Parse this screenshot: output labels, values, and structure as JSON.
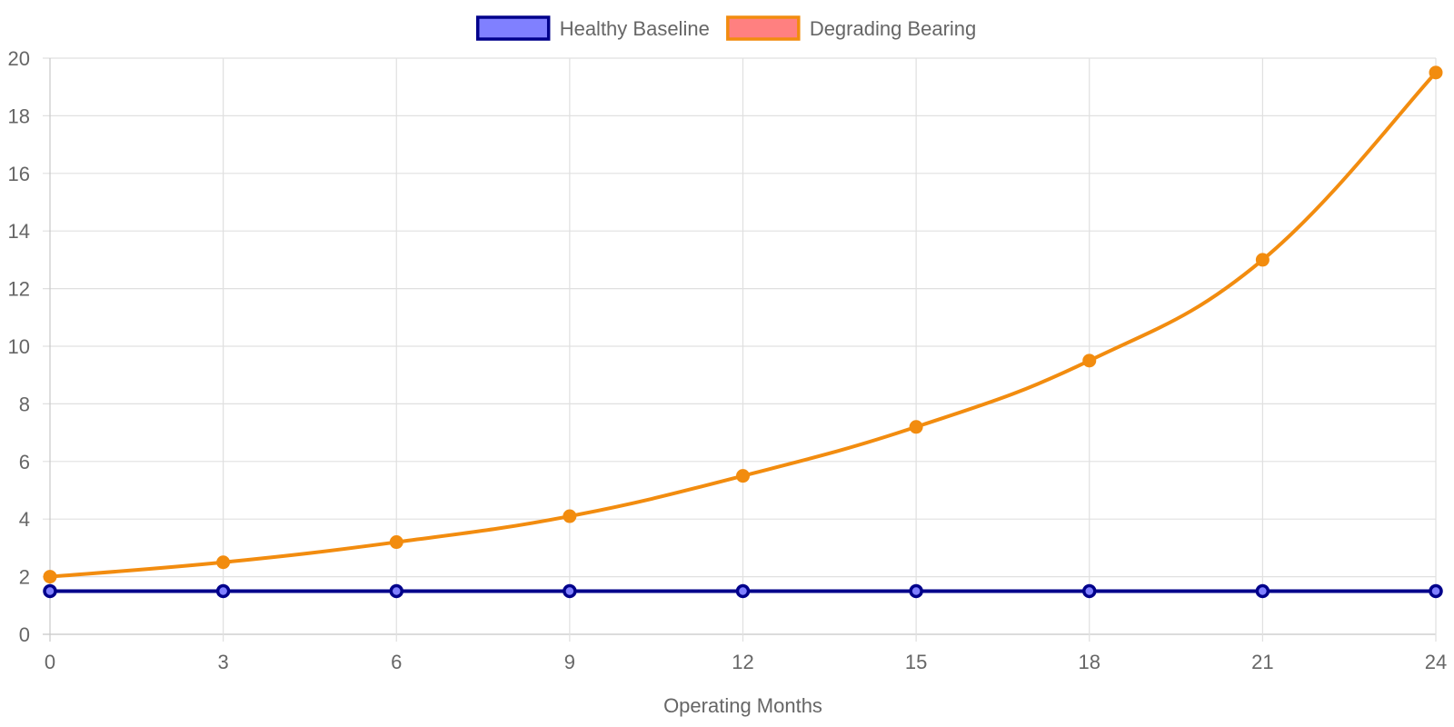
{
  "chart_data": {
    "type": "line",
    "title": "",
    "xlabel": "Operating Months",
    "ylabel": "",
    "x": [
      0,
      3,
      6,
      9,
      12,
      15,
      18,
      21,
      24
    ],
    "xlim": [
      0,
      24
    ],
    "ylim": [
      0,
      20
    ],
    "x_ticks": [
      0,
      3,
      6,
      9,
      12,
      15,
      18,
      21,
      24
    ],
    "y_ticks": [
      0,
      2,
      4,
      6,
      8,
      10,
      12,
      14,
      16,
      18,
      20
    ],
    "grid": true,
    "legend_position": "top-center",
    "series": [
      {
        "name": "Healthy Baseline",
        "values": [
          1.5,
          1.5,
          1.5,
          1.5,
          1.5,
          1.5,
          1.5,
          1.5,
          1.5
        ],
        "line_color": "#00008b",
        "fill_color": "#8080ff"
      },
      {
        "name": "Degrading Bearing",
        "values": [
          2.0,
          2.5,
          3.2,
          4.1,
          5.5,
          7.2,
          9.5,
          13.0,
          19.5
        ],
        "line_color": "#f28c0f",
        "fill_color": "#ff8080"
      }
    ]
  }
}
